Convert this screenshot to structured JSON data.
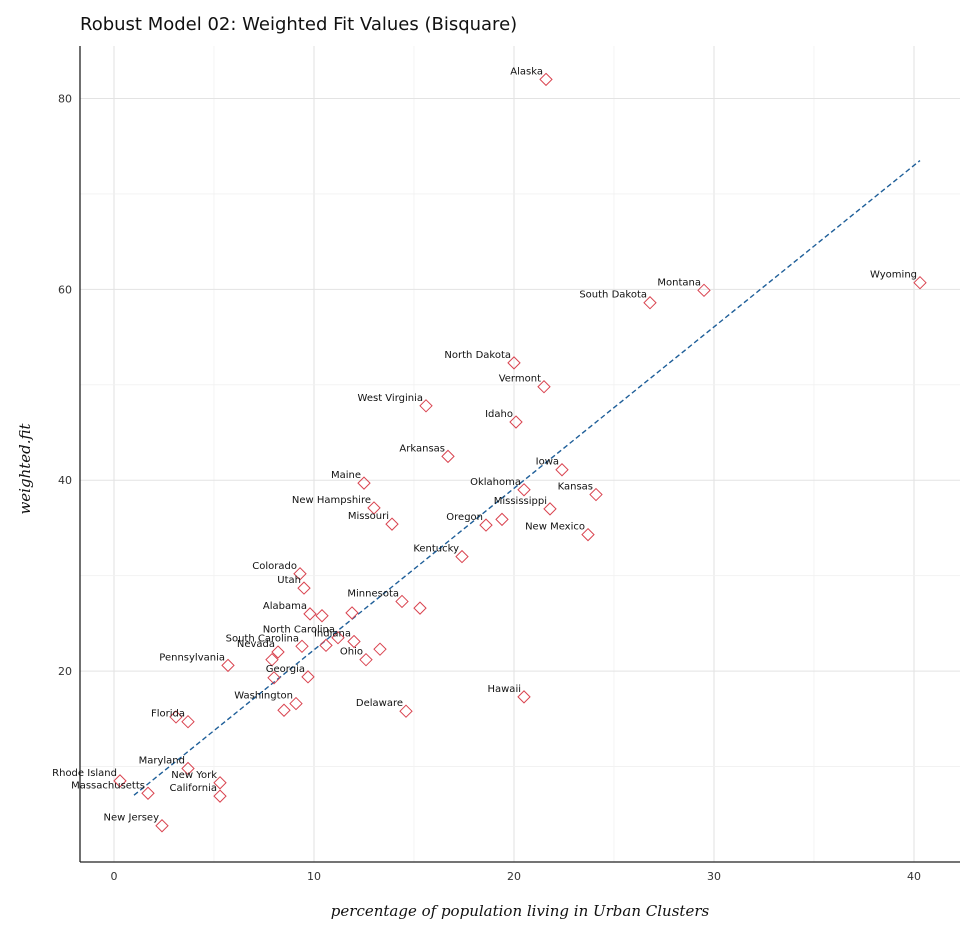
{
  "chart_data": {
    "type": "scatter",
    "title": "Robust Model 02: Weighted Fit Values (Bisquare)",
    "xlabel": "percentage of population living in Urban Clusters",
    "ylabel": "weighted.fit",
    "xlim": [
      -1.7,
      42.3
    ],
    "ylim": [
      0,
      85.5
    ],
    "x_ticks": [
      0,
      10,
      20,
      30,
      40
    ],
    "y_ticks": [
      20,
      40,
      60,
      80
    ],
    "grid": true,
    "marker": "open-diamond",
    "marker_color": "#d9434f",
    "fit_line": {
      "style": "dashed",
      "color": "#1f5f99",
      "from": [
        1.0,
        7.0
      ],
      "to": [
        40.3,
        73.5
      ]
    },
    "points": [
      {
        "label": "Alaska",
        "x": 21.6,
        "y": 82.0
      },
      {
        "label": "Wyoming",
        "x": 40.3,
        "y": 60.7
      },
      {
        "label": "Montana",
        "x": 29.5,
        "y": 59.9
      },
      {
        "label": "South Dakota",
        "x": 26.8,
        "y": 58.6
      },
      {
        "label": "North Dakota",
        "x": 20.0,
        "y": 52.3
      },
      {
        "label": "Vermont",
        "x": 21.5,
        "y": 49.8
      },
      {
        "label": "West Virginia",
        "x": 15.6,
        "y": 47.8
      },
      {
        "label": "Idaho",
        "x": 20.1,
        "y": 46.1
      },
      {
        "label": "Arkansas",
        "x": 16.7,
        "y": 42.5
      },
      {
        "label": "Iowa",
        "x": 22.4,
        "y": 41.1
      },
      {
        "label": "Maine",
        "x": 12.5,
        "y": 39.7
      },
      {
        "label": "Oklahoma",
        "x": 20.5,
        "y": 39.0
      },
      {
        "label": "Kansas",
        "x": 24.1,
        "y": 38.5
      },
      {
        "label": "New Hampshire",
        "x": 13.0,
        "y": 37.1
      },
      {
        "label": "Mississippi",
        "x": 21.8,
        "y": 37.0
      },
      {
        "label": "Missouri",
        "x": 13.9,
        "y": 35.4
      },
      {
        "label": "Oregon",
        "x": 18.6,
        "y": 35.3
      },
      {
        "label": "",
        "x": 19.4,
        "y": 35.9
      },
      {
        "label": "New Mexico",
        "x": 23.7,
        "y": 34.3
      },
      {
        "label": "Kentucky",
        "x": 17.4,
        "y": 32.0
      },
      {
        "label": "Colorado",
        "x": 9.3,
        "y": 30.2
      },
      {
        "label": "Utah",
        "x": 9.5,
        "y": 28.7
      },
      {
        "label": "Minnesota",
        "x": 14.4,
        "y": 27.3
      },
      {
        "label": "",
        "x": 15.3,
        "y": 26.6
      },
      {
        "label": "Alabama",
        "x": 9.8,
        "y": 26.0
      },
      {
        "label": "",
        "x": 10.4,
        "y": 25.8
      },
      {
        "label": "",
        "x": 11.9,
        "y": 26.1
      },
      {
        "label": "North Carolina",
        "x": 11.2,
        "y": 23.5
      },
      {
        "label": "South Carolina",
        "x": 9.4,
        "y": 22.6
      },
      {
        "label": "",
        "x": 10.6,
        "y": 22.7
      },
      {
        "label": "Indiana",
        "x": 12.0,
        "y": 23.1
      },
      {
        "label": "Ohio",
        "x": 12.6,
        "y": 21.2
      },
      {
        "label": "",
        "x": 13.3,
        "y": 22.3
      },
      {
        "label": "Nevada",
        "x": 8.2,
        "y": 22.0
      },
      {
        "label": "",
        "x": 7.9,
        "y": 21.2
      },
      {
        "label": "Pennsylvania",
        "x": 5.7,
        "y": 20.6
      },
      {
        "label": "Georgia",
        "x": 9.7,
        "y": 19.4
      },
      {
        "label": "",
        "x": 8.0,
        "y": 19.3
      },
      {
        "label": "Washington",
        "x": 9.1,
        "y": 16.6
      },
      {
        "label": "",
        "x": 8.5,
        "y": 15.9
      },
      {
        "label": "Hawaii",
        "x": 20.5,
        "y": 17.3
      },
      {
        "label": "Delaware",
        "x": 14.6,
        "y": 15.8
      },
      {
        "label": "Florida",
        "x": 3.7,
        "y": 14.7
      },
      {
        "label": "",
        "x": 3.1,
        "y": 15.2
      },
      {
        "label": "Maryland",
        "x": 3.7,
        "y": 9.8
      },
      {
        "label": "New York",
        "x": 5.3,
        "y": 8.3
      },
      {
        "label": "Rhode Island",
        "x": 0.3,
        "y": 8.5
      },
      {
        "label": "California",
        "x": 5.3,
        "y": 6.9
      },
      {
        "label": "Massachusetts",
        "x": 1.7,
        "y": 7.2
      },
      {
        "label": "New Jersey",
        "x": 2.4,
        "y": 3.8
      }
    ]
  }
}
